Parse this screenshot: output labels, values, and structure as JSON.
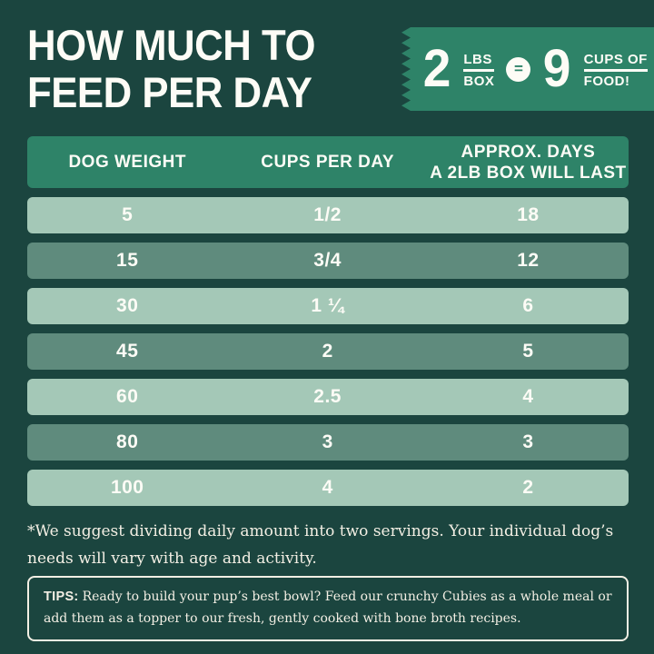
{
  "title": {
    "line1": "HOW MUCH TO",
    "line2": "FEED PER DAY"
  },
  "badge": {
    "box_quantity": "2",
    "box_unit_top": "LBS",
    "box_unit_bottom": "BOX",
    "equals_symbol": "=",
    "cups_quantity": "9",
    "cups_unit_top": "CUPS OF",
    "cups_unit_bottom": "FOOD!"
  },
  "table": {
    "header": {
      "col_weight": "DOG WEIGHT",
      "col_cups": "CUPS PER DAY",
      "col_days_line1": "APPROX. DAYS",
      "col_days_line2": "A 2LB BOX WILL LAST"
    },
    "rows": [
      [
        "5",
        "1/2",
        "18"
      ],
      [
        "15",
        "3/4",
        "12"
      ],
      [
        "30",
        "1 ¼",
        "6"
      ],
      [
        "45",
        "2",
        "5"
      ],
      [
        "60",
        "2.5",
        "4"
      ],
      [
        "80",
        "3",
        "3"
      ],
      [
        "100",
        "4",
        "2"
      ]
    ]
  },
  "footnote": "*We suggest dividing daily amount into two servings. Your individual dog’s needs will vary with age and activity.",
  "tips": {
    "label": "TIPS:",
    "text": "Ready to build your pup’s best bowl? Feed our crunchy Cubies as a whole meal or add them as a topper to our fresh, gently cooked with bone broth recipes."
  },
  "colors": {
    "background": "#1b453f",
    "accent_green": "#2e8368",
    "row_light": "#a4c8b7",
    "row_dark": "#5f8b7d",
    "text_light": "#f3efe4"
  },
  "chart_data": {
    "type": "table",
    "title": "How Much To Feed Per Day",
    "conversion": {
      "box_lbs": 2,
      "cups_of_food": 9
    },
    "columns": [
      "Dog Weight",
      "Cups Per Day",
      "Approx. Days a 2lb Box Will Last"
    ],
    "dog_weight_lbs": [
      5,
      15,
      30,
      45,
      60,
      80,
      100
    ],
    "cups_per_day": [
      0.5,
      0.75,
      1.25,
      2,
      2.5,
      3,
      4
    ],
    "days_box_lasts": [
      18,
      12,
      6,
      5,
      4,
      3,
      2
    ]
  }
}
